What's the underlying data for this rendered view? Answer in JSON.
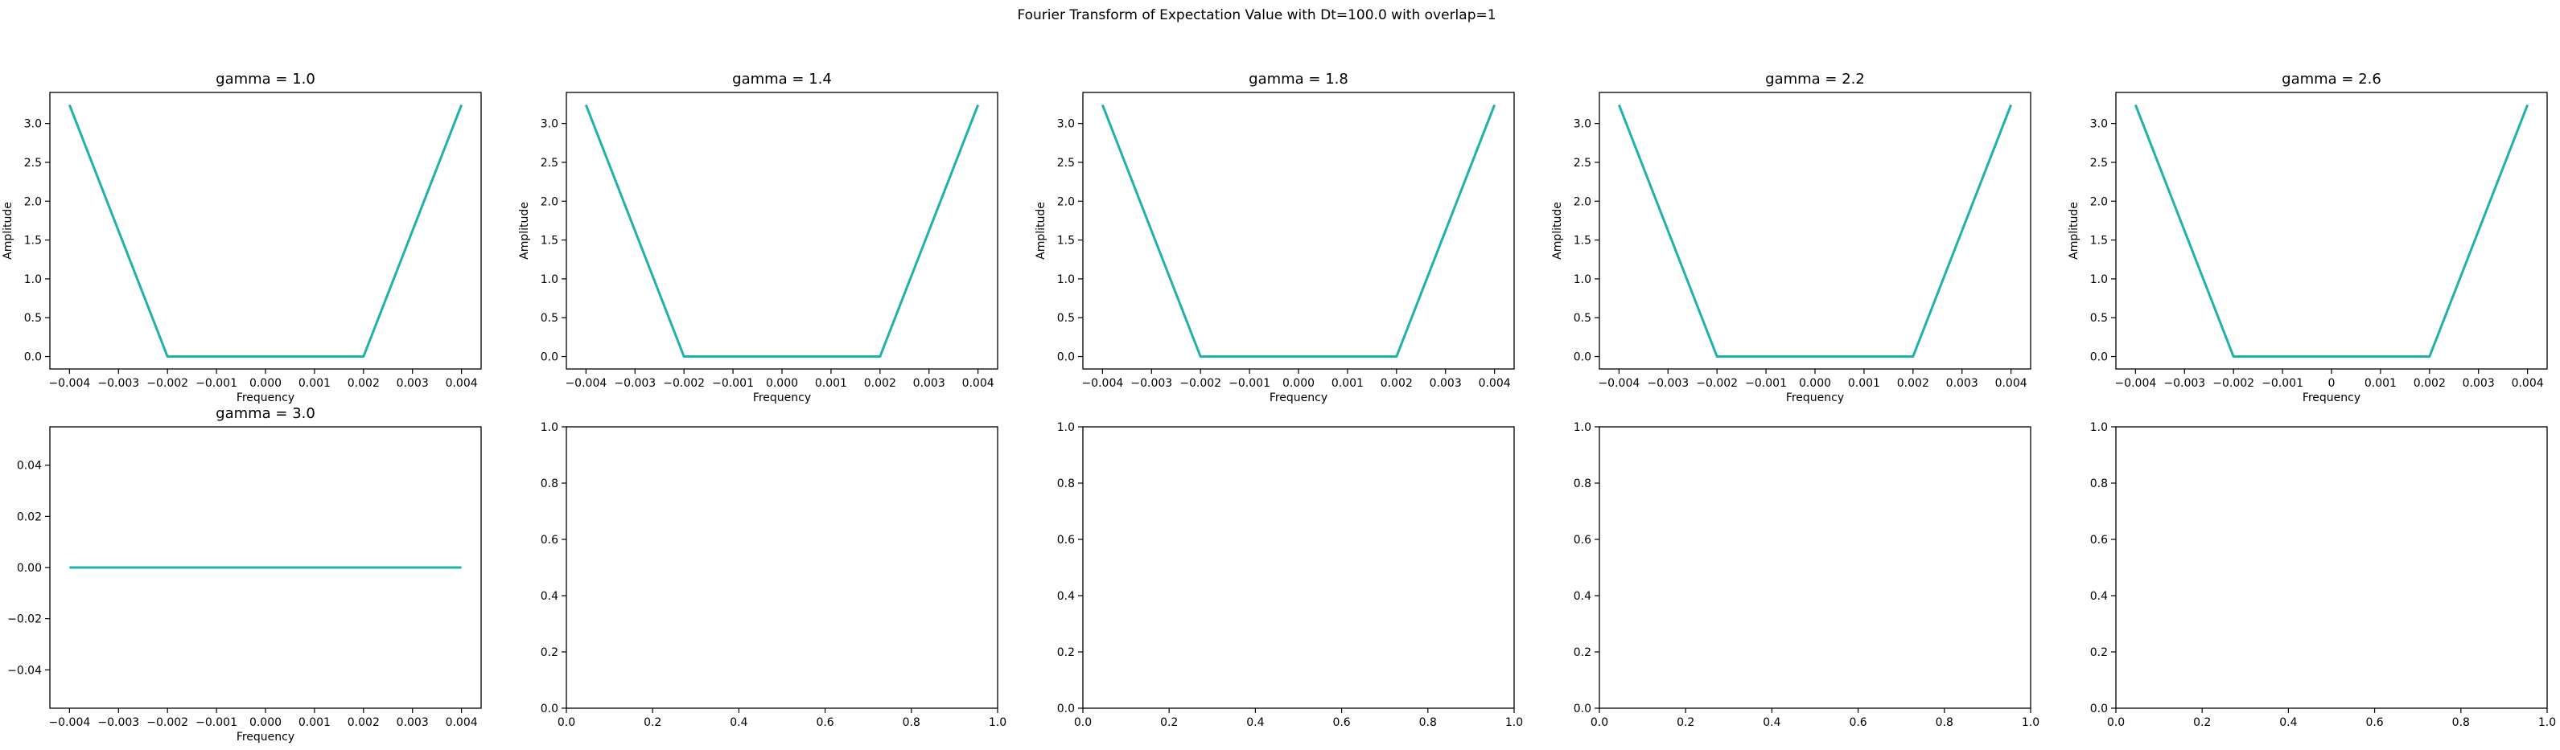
{
  "figure": {
    "suptitle": "Fourier Transform of Expectation Value with Dt=100.0 with overlap=1",
    "line_color": "#20b2aa"
  },
  "chart_data": [
    {
      "type": "line",
      "title": "gamma = 1.0",
      "xlabel": "Frequency",
      "ylabel": "Amplitude",
      "xlim": [
        -0.0044,
        0.0044
      ],
      "ylim": [
        -0.16,
        3.4
      ],
      "xticks": [
        -0.004,
        -0.003,
        -0.002,
        -0.001,
        0.0,
        0.001,
        0.002,
        0.003,
        0.004
      ],
      "xtick_labels": [
        "−0.004",
        "−0.003",
        "−0.002",
        "−0.001",
        "0.000",
        "0.001",
        "0.002",
        "0.003",
        "0.004"
      ],
      "yticks": [
        0.0,
        0.5,
        1.0,
        1.5,
        2.0,
        2.5,
        3.0
      ],
      "ytick_labels": [
        "0.0",
        "0.5",
        "1.0",
        "1.5",
        "2.0",
        "2.5",
        "3.0"
      ],
      "x": [
        -0.004,
        -0.002,
        0.0,
        0.002,
        0.004
      ],
      "y": [
        3.24,
        0.0,
        0.0,
        0.0,
        3.24
      ]
    },
    {
      "type": "line",
      "title": "gamma = 1.4",
      "xlabel": "Frequency",
      "ylabel": "Amplitude",
      "xlim": [
        -0.0044,
        0.0044
      ],
      "ylim": [
        -0.16,
        3.4
      ],
      "xticks": [
        -0.004,
        -0.003,
        -0.002,
        -0.001,
        0.0,
        0.001,
        0.002,
        0.003,
        0.004
      ],
      "xtick_labels": [
        "−0.004",
        "−0.003",
        "−0.002",
        "−0.001",
        "0.000",
        "0.001",
        "0.002",
        "0.003",
        "0.004"
      ],
      "yticks": [
        0.0,
        0.5,
        1.0,
        1.5,
        2.0,
        2.5,
        3.0
      ],
      "ytick_labels": [
        "0.0",
        "0.5",
        "1.0",
        "1.5",
        "2.0",
        "2.5",
        "3.0"
      ],
      "x": [
        -0.004,
        -0.002,
        0.0,
        0.002,
        0.004
      ],
      "y": [
        3.24,
        0.0,
        0.0,
        0.0,
        3.24
      ]
    },
    {
      "type": "line",
      "title": "gamma = 1.8",
      "xlabel": "Frequency",
      "ylabel": "Amplitude",
      "xlim": [
        -0.0044,
        0.0044
      ],
      "ylim": [
        -0.16,
        3.4
      ],
      "xticks": [
        -0.004,
        -0.003,
        -0.002,
        -0.001,
        0.0,
        0.001,
        0.002,
        0.003,
        0.004
      ],
      "xtick_labels": [
        "−0.004",
        "−0.003",
        "−0.002",
        "−0.001",
        "0.000",
        "0.001",
        "0.002",
        "0.003",
        "0.004"
      ],
      "yticks": [
        0.0,
        0.5,
        1.0,
        1.5,
        2.0,
        2.5,
        3.0
      ],
      "ytick_labels": [
        "0.0",
        "0.5",
        "1.0",
        "1.5",
        "2.0",
        "2.5",
        "3.0"
      ],
      "x": [
        -0.004,
        -0.002,
        0.0,
        0.002,
        0.004
      ],
      "y": [
        3.24,
        0.0,
        0.0,
        0.0,
        3.24
      ]
    },
    {
      "type": "line",
      "title": "gamma = 2.2",
      "xlabel": "Frequency",
      "ylabel": "Amplitude",
      "xlim": [
        -0.0044,
        0.0044
      ],
      "ylim": [
        -0.16,
        3.4
      ],
      "xticks": [
        -0.004,
        -0.003,
        -0.002,
        -0.001,
        0.0,
        0.001,
        0.002,
        0.003,
        0.004
      ],
      "xtick_labels": [
        "−0.004",
        "−0.003",
        "−0.002",
        "−0.001",
        "0.000",
        "0.001",
        "0.002",
        "0.003",
        "0.004"
      ],
      "yticks": [
        0.0,
        0.5,
        1.0,
        1.5,
        2.0,
        2.5,
        3.0
      ],
      "ytick_labels": [
        "0.0",
        "0.5",
        "1.0",
        "1.5",
        "2.0",
        "2.5",
        "3.0"
      ],
      "x": [
        -0.004,
        -0.002,
        0.0,
        0.002,
        0.004
      ],
      "y": [
        3.24,
        0.0,
        0.0,
        0.0,
        3.24
      ]
    },
    {
      "type": "line",
      "title": "gamma = 2.6",
      "xlabel": "Frequency",
      "ylabel": "Amplitude",
      "xlim": [
        -0.0044,
        0.0044
      ],
      "ylim": [
        -0.16,
        3.4
      ],
      "xticks": [
        -0.004,
        -0.003,
        -0.002,
        -0.001,
        0.0,
        0.001,
        0.002,
        0.003,
        0.004
      ],
      "xtick_labels": [
        "−0.004",
        "−0.003",
        "−0.002",
        "−0.001",
        "0",
        "0.001",
        "0.002",
        "0.003",
        "0.004"
      ],
      "yticks": [
        0.0,
        0.5,
        1.0,
        1.5,
        2.0,
        2.5,
        3.0
      ],
      "ytick_labels": [
        "0.0",
        "0.5",
        "1.0",
        "1.5",
        "2.0",
        "2.5",
        "3.0"
      ],
      "x": [
        -0.004,
        -0.002,
        0.0,
        0.002,
        0.004
      ],
      "y": [
        3.24,
        0.0,
        0.0,
        0.0,
        3.24
      ]
    },
    {
      "type": "line",
      "title": "gamma = 3.0",
      "xlabel": "Frequency",
      "ylabel": "",
      "xlim": [
        -0.0044,
        0.0044
      ],
      "ylim": [
        -0.055,
        0.055
      ],
      "xticks": [
        -0.004,
        -0.003,
        -0.002,
        -0.001,
        0.0,
        0.001,
        0.002,
        0.003,
        0.004
      ],
      "xtick_labels": [
        "−0.004",
        "−0.003",
        "−0.002",
        "−0.001",
        "0.000",
        "0.001",
        "0.002",
        "0.003",
        "0.004"
      ],
      "yticks": [
        -0.04,
        -0.02,
        0.0,
        0.02,
        0.04
      ],
      "ytick_labels": [
        "−0.04",
        "−0.02",
        "0.00",
        "0.02",
        "0.04"
      ],
      "x": [
        -0.004,
        -0.002,
        0.0,
        0.002,
        0.004
      ],
      "y": [
        0.0,
        0.0,
        0.0,
        0.0,
        0.0
      ]
    },
    {
      "type": "line",
      "title": "",
      "xlabel": "",
      "ylabel": "",
      "xlim": [
        0,
        1
      ],
      "ylim": [
        0,
        1
      ],
      "xticks": [
        0.0,
        0.2,
        0.4,
        0.6,
        0.8,
        1.0
      ],
      "xtick_labels": [
        "0.0",
        "0.2",
        "0.4",
        "0.6",
        "0.8",
        "1.0"
      ],
      "yticks": [
        0.0,
        0.2,
        0.4,
        0.6,
        0.8,
        1.0
      ],
      "ytick_labels": [
        "0.0",
        "0.2",
        "0.4",
        "0.6",
        "0.8",
        "1.0"
      ],
      "x": [],
      "y": []
    },
    {
      "type": "line",
      "title": "",
      "xlabel": "",
      "ylabel": "",
      "xlim": [
        0,
        1
      ],
      "ylim": [
        0,
        1
      ],
      "xticks": [
        0.0,
        0.2,
        0.4,
        0.6,
        0.8,
        1.0
      ],
      "xtick_labels": [
        "0.0",
        "0.2",
        "0.4",
        "0.6",
        "0.8",
        "1.0"
      ],
      "yticks": [
        0.0,
        0.2,
        0.4,
        0.6,
        0.8,
        1.0
      ],
      "ytick_labels": [
        "0.0",
        "0.2",
        "0.4",
        "0.6",
        "0.8",
        "1.0"
      ],
      "x": [],
      "y": []
    },
    {
      "type": "line",
      "title": "",
      "xlabel": "",
      "ylabel": "",
      "xlim": [
        0,
        1
      ],
      "ylim": [
        0,
        1
      ],
      "xticks": [
        0.0,
        0.2,
        0.4,
        0.6,
        0.8,
        1.0
      ],
      "xtick_labels": [
        "0.0",
        "0.2",
        "0.4",
        "0.6",
        "0.8",
        "1.0"
      ],
      "yticks": [
        0.0,
        0.2,
        0.4,
        0.6,
        0.8,
        1.0
      ],
      "ytick_labels": [
        "0.0",
        "0.2",
        "0.4",
        "0.6",
        "0.8",
        "1.0"
      ],
      "x": [],
      "y": []
    },
    {
      "type": "line",
      "title": "",
      "xlabel": "",
      "ylabel": "",
      "xlim": [
        0,
        1
      ],
      "ylim": [
        0,
        1
      ],
      "xticks": [
        0.0,
        0.2,
        0.4,
        0.6,
        0.8,
        1.0
      ],
      "xtick_labels": [
        "0.0",
        "0.2",
        "0.4",
        "0.6",
        "0.8",
        "1.0"
      ],
      "yticks": [
        0.0,
        0.2,
        0.4,
        0.6,
        0.8,
        1.0
      ],
      "ytick_labels": [
        "0.0",
        "0.2",
        "0.4",
        "0.6",
        "0.8",
        "1.0"
      ],
      "x": [],
      "y": []
    }
  ]
}
